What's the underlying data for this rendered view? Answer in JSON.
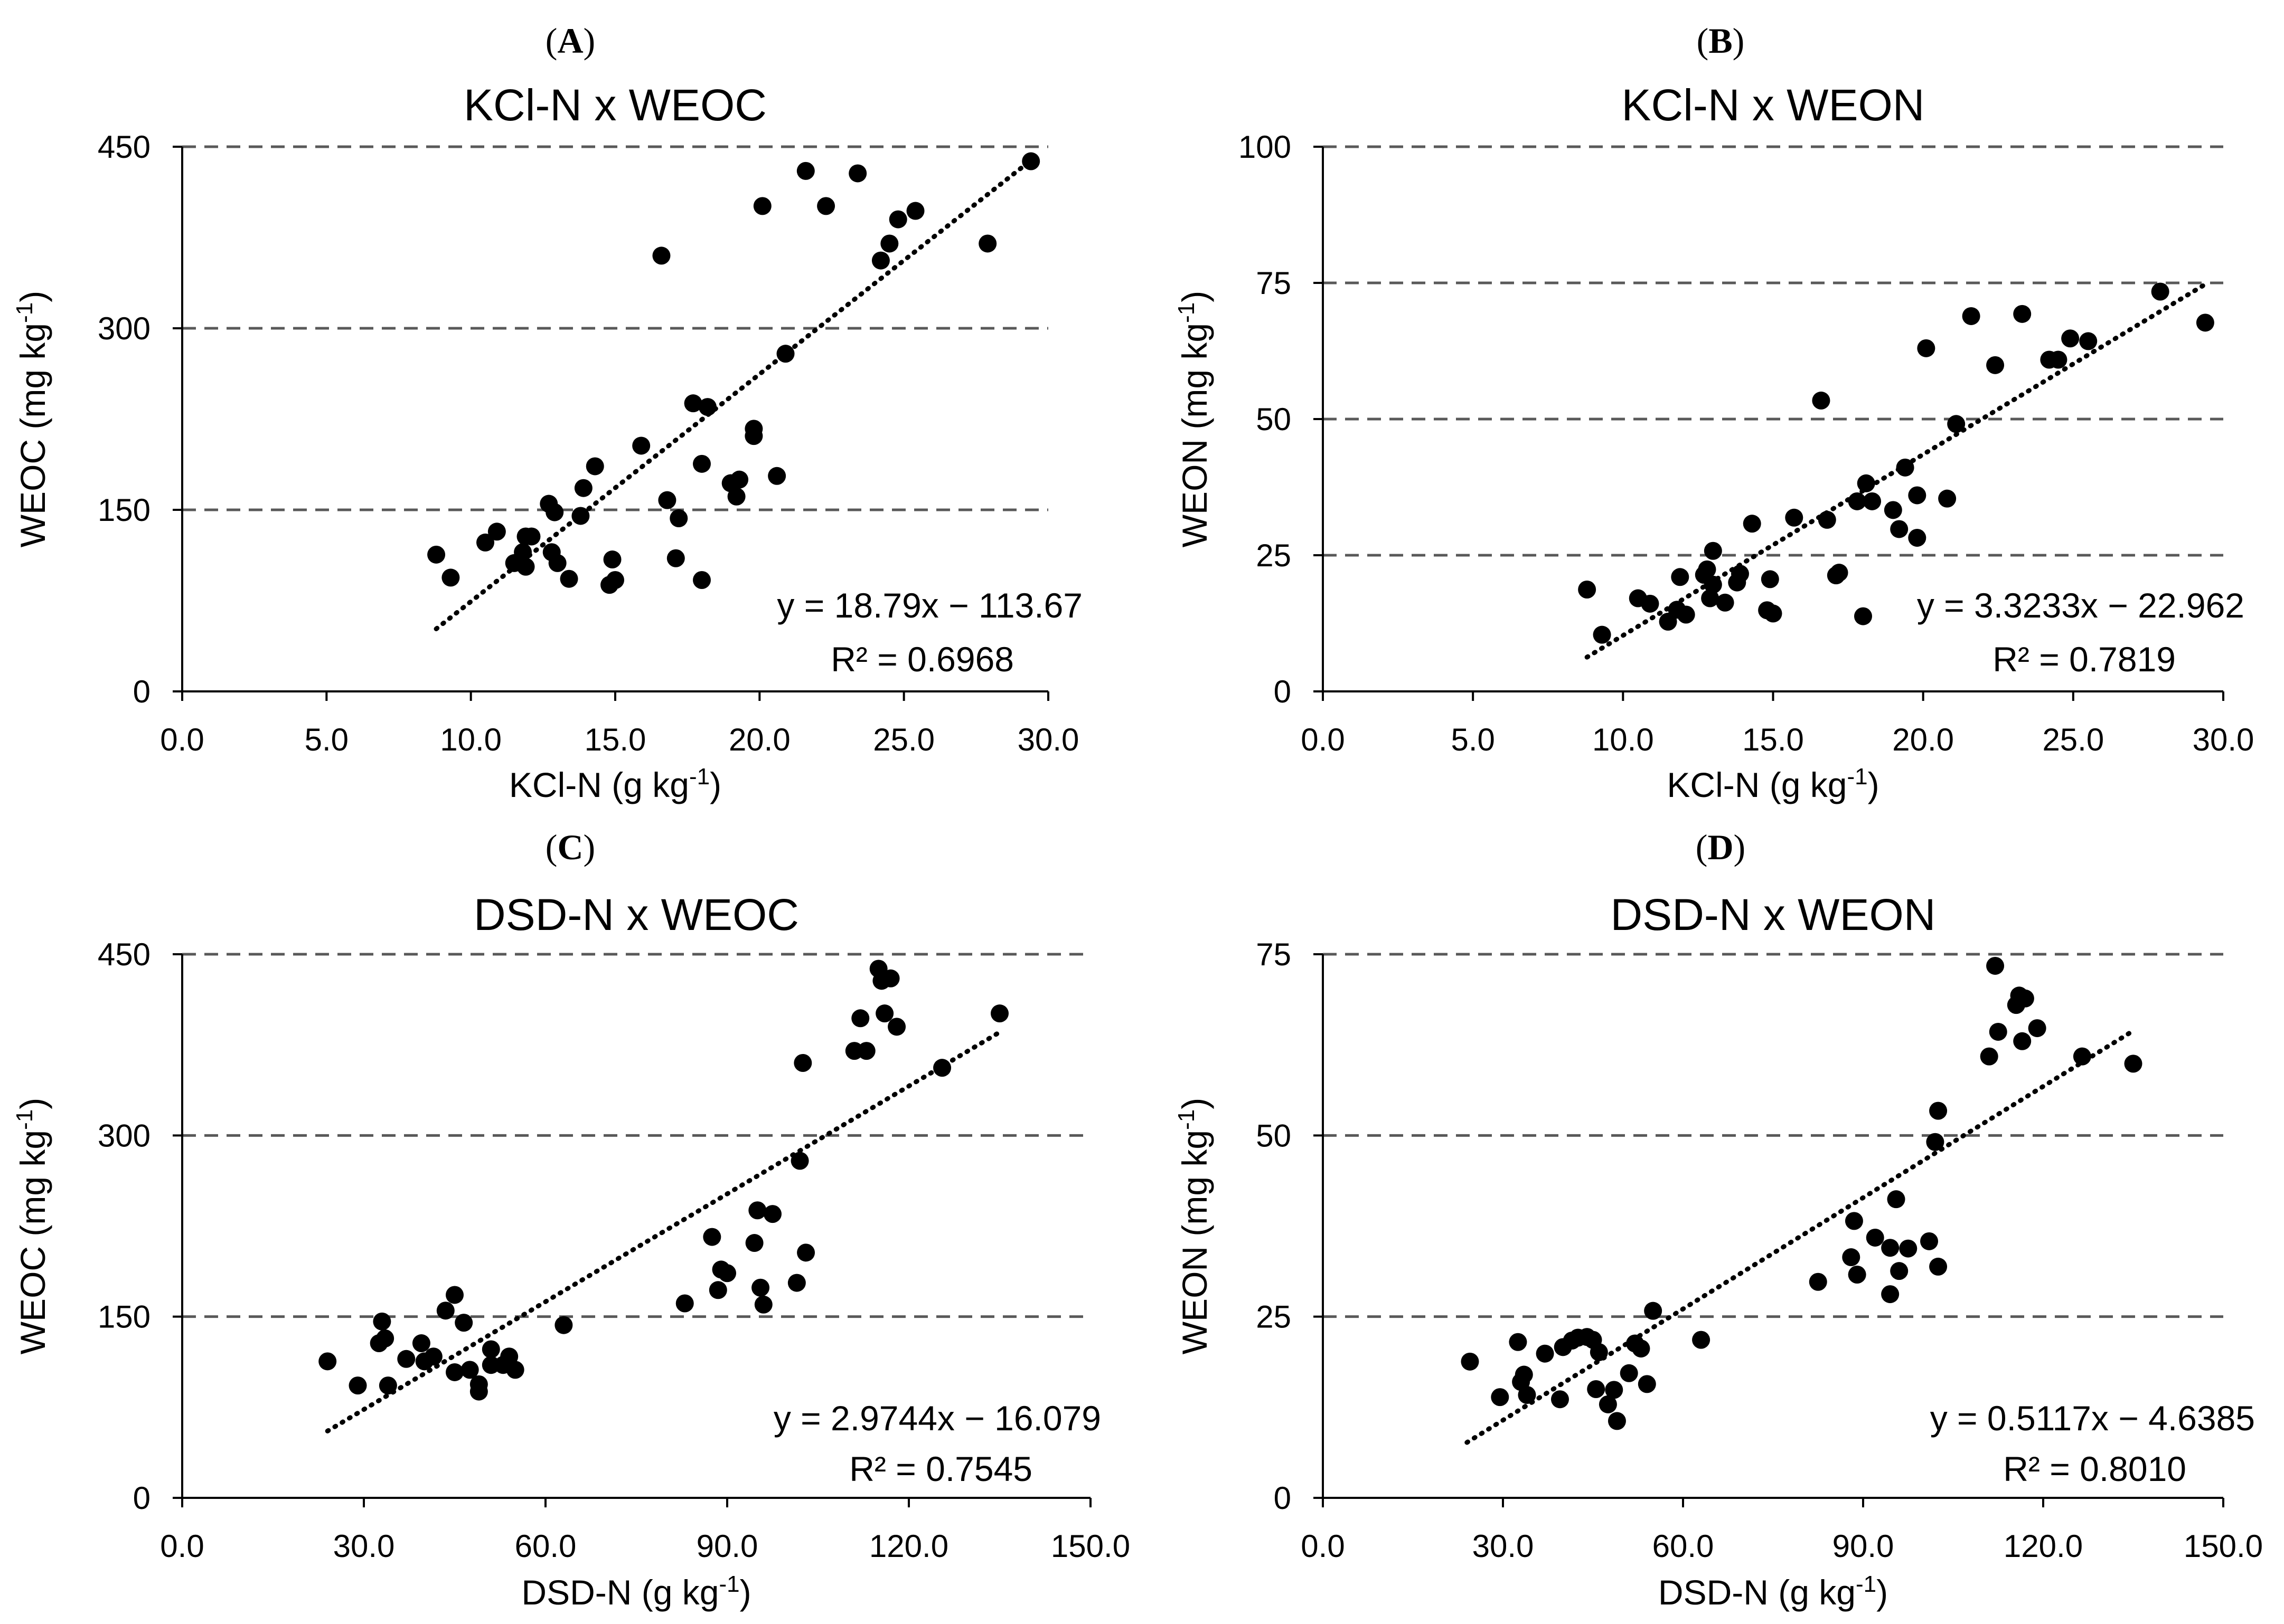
{
  "figure": {
    "panels": [
      {
        "label": "A",
        "open": "(",
        "close": ")"
      },
      {
        "label": "B",
        "open": "(",
        "close": ")"
      },
      {
        "label": "C",
        "open": "(",
        "close": ")"
      },
      {
        "label": "D",
        "open": "(",
        "close": ")"
      }
    ]
  },
  "chart_data": [
    {
      "type": "scatter",
      "panel": "A",
      "title": "KCl-N x WEOC",
      "xlabel": "KCl-N (g kg",
      "xlabel_sup": "-1",
      "xlabel_end": ")",
      "ylabel": "WEOC (mg kg",
      "ylabel_sup": "-1",
      "ylabel_end": ")",
      "xlim": [
        0,
        30
      ],
      "ylim": [
        0,
        450
      ],
      "xticks": [
        "0.0",
        "5.0",
        "10.0",
        "15.0",
        "20.0",
        "25.0",
        "30.0"
      ],
      "xtick_values": [
        0,
        5,
        10,
        15,
        20,
        25,
        30
      ],
      "yticks": [
        "0",
        "150",
        "300",
        "450"
      ],
      "ytick_values": [
        0,
        150,
        300,
        450
      ],
      "grid": "horizontal-dashed",
      "equation": "y = 18.79x − 113.67",
      "r_squared": "R² = 0.6968",
      "trendline": {
        "slope": 18.79,
        "intercept": -113.67,
        "x_range": [
          8.8,
          29.4
        ]
      },
      "points": [
        [
          8.8,
          113
        ],
        [
          9.3,
          94
        ],
        [
          10.5,
          123
        ],
        [
          10.9,
          132
        ],
        [
          11.5,
          106
        ],
        [
          11.8,
          115
        ],
        [
          11.9,
          103
        ],
        [
          11.9,
          128
        ],
        [
          12.1,
          128
        ],
        [
          12.7,
          155
        ],
        [
          12.8,
          115
        ],
        [
          12.9,
          148
        ],
        [
          13.0,
          106
        ],
        [
          13.4,
          93
        ],
        [
          13.8,
          145
        ],
        [
          13.9,
          168
        ],
        [
          14.3,
          186
        ],
        [
          14.8,
          88
        ],
        [
          14.9,
          109
        ],
        [
          15.0,
          92
        ],
        [
          15.9,
          203
        ],
        [
          16.6,
          360
        ],
        [
          16.8,
          158
        ],
        [
          17.1,
          110
        ],
        [
          17.2,
          143
        ],
        [
          17.7,
          238
        ],
        [
          18.0,
          92
        ],
        [
          18.0,
          188
        ],
        [
          18.2,
          235
        ],
        [
          19.0,
          172
        ],
        [
          19.2,
          161
        ],
        [
          19.3,
          175
        ],
        [
          19.8,
          211
        ],
        [
          19.8,
          217
        ],
        [
          20.1,
          401
        ],
        [
          20.6,
          178
        ],
        [
          20.9,
          279
        ],
        [
          21.6,
          430
        ],
        [
          22.3,
          401
        ],
        [
          23.4,
          428
        ],
        [
          24.2,
          356
        ],
        [
          24.5,
          370
        ],
        [
          24.8,
          390
        ],
        [
          25.4,
          397
        ],
        [
          27.9,
          370
        ],
        [
          29.4,
          438
        ]
      ]
    },
    {
      "type": "scatter",
      "panel": "B",
      "title": "KCl-N x WEON",
      "xlabel": "KCl-N (g kg",
      "xlabel_sup": "-1",
      "xlabel_end": ")",
      "ylabel": "WEON (mg kg",
      "ylabel_sup": "-1",
      "ylabel_end": ")",
      "xlim": [
        0,
        30
      ],
      "ylim": [
        0,
        100
      ],
      "xticks": [
        "0.0",
        "5.0",
        "10.0",
        "15.0",
        "20.0",
        "25.0",
        "30.0"
      ],
      "xtick_values": [
        0,
        5,
        10,
        15,
        20,
        25,
        30
      ],
      "yticks": [
        "0",
        "25",
        "50",
        "75",
        "100"
      ],
      "ytick_values": [
        0,
        25,
        50,
        75,
        100
      ],
      "grid": "horizontal-dashed",
      "equation": "y = 3.3233x − 22.962",
      "r_squared": "R² = 0.7819",
      "trendline": {
        "slope": 3.3233,
        "intercept": -22.962,
        "x_range": [
          8.8,
          29.4
        ]
      },
      "points": [
        [
          8.8,
          18.7
        ],
        [
          9.3,
          10.4
        ],
        [
          10.5,
          17.1
        ],
        [
          10.9,
          16.1
        ],
        [
          11.5,
          12.8
        ],
        [
          11.8,
          15.0
        ],
        [
          11.9,
          21.0
        ],
        [
          12.1,
          14.1
        ],
        [
          12.7,
          21.4
        ],
        [
          12.8,
          22.4
        ],
        [
          12.9,
          17.1
        ],
        [
          13.0,
          19.6
        ],
        [
          13.0,
          25.8
        ],
        [
          13.4,
          16.3
        ],
        [
          13.8,
          20.0
        ],
        [
          13.9,
          21.6
        ],
        [
          14.3,
          30.8
        ],
        [
          14.8,
          14.9
        ],
        [
          14.9,
          20.6
        ],
        [
          15.0,
          14.3
        ],
        [
          15.7,
          31.9
        ],
        [
          16.6,
          53.4
        ],
        [
          16.8,
          31.5
        ],
        [
          17.1,
          21.3
        ],
        [
          17.2,
          21.8
        ],
        [
          17.8,
          34.9
        ],
        [
          18.0,
          13.8
        ],
        [
          18.1,
          38.2
        ],
        [
          18.3,
          34.9
        ],
        [
          19.0,
          33.3
        ],
        [
          19.2,
          29.8
        ],
        [
          19.4,
          41.1
        ],
        [
          19.8,
          28.2
        ],
        [
          19.8,
          36.0
        ],
        [
          20.1,
          63.0
        ],
        [
          20.8,
          35.4
        ],
        [
          21.1,
          49.1
        ],
        [
          21.6,
          68.9
        ],
        [
          22.4,
          59.9
        ],
        [
          23.3,
          69.3
        ],
        [
          24.2,
          60.9
        ],
        [
          24.5,
          60.9
        ],
        [
          24.9,
          64.8
        ],
        [
          25.5,
          64.3
        ],
        [
          27.9,
          73.4
        ],
        [
          29.4,
          67.7
        ]
      ]
    },
    {
      "type": "scatter",
      "panel": "C",
      "title": "DSD-N x WEOC",
      "xlabel": "DSD-N (g kg",
      "xlabel_sup": "-1",
      "xlabel_end": ")",
      "ylabel": "WEOC (mg kg",
      "ylabel_sup": "-1",
      "ylabel_end": ")",
      "xlim": [
        0,
        150
      ],
      "ylim": [
        0,
        450
      ],
      "xticks": [
        "0.0",
        "30.0",
        "60.0",
        "90.0",
        "120.0",
        "150.0"
      ],
      "xtick_values": [
        0,
        30,
        60,
        90,
        120,
        150
      ],
      "yticks": [
        "0",
        "150",
        "300",
        "450"
      ],
      "ytick_values": [
        0,
        150,
        300,
        450
      ],
      "grid": "horizontal-dashed",
      "equation": "y = 2.9744x − 16.079",
      "r_squared": "R² = 0.7545",
      "trendline": {
        "slope": 2.9744,
        "intercept": -16.079,
        "x_range": [
          24.0,
          135.0
        ]
      },
      "points": [
        [
          24.0,
          113
        ],
        [
          29.0,
          93
        ],
        [
          32.5,
          128
        ],
        [
          33.0,
          146
        ],
        [
          33.5,
          132
        ],
        [
          34.0,
          93
        ],
        [
          37.0,
          115
        ],
        [
          39.5,
          128
        ],
        [
          40.0,
          113
        ],
        [
          41.5,
          117
        ],
        [
          43.5,
          155
        ],
        [
          45.0,
          168
        ],
        [
          45.0,
          104
        ],
        [
          46.5,
          145
        ],
        [
          47.5,
          106
        ],
        [
          49.0,
          88
        ],
        [
          49.0,
          94
        ],
        [
          51.0,
          110
        ],
        [
          51.0,
          123
        ],
        [
          53.0,
          110
        ],
        [
          54.0,
          117
        ],
        [
          55.0,
          106
        ],
        [
          63.0,
          143
        ],
        [
          83.0,
          161
        ],
        [
          87.5,
          216
        ],
        [
          88.5,
          172
        ],
        [
          89.0,
          189
        ],
        [
          90.0,
          186
        ],
        [
          94.5,
          211
        ],
        [
          95.0,
          238
        ],
        [
          95.5,
          174
        ],
        [
          96.0,
          160
        ],
        [
          97.5,
          235
        ],
        [
          101.5,
          178
        ],
        [
          102.0,
          279
        ],
        [
          102.5,
          360
        ],
        [
          103.0,
          203
        ],
        [
          111.0,
          370
        ],
        [
          112.0,
          397
        ],
        [
          113.0,
          370
        ],
        [
          115.0,
          438
        ],
        [
          115.5,
          428
        ],
        [
          116.0,
          401
        ],
        [
          117.0,
          430
        ],
        [
          118.0,
          390
        ],
        [
          125.5,
          356
        ],
        [
          135.0,
          401
        ]
      ]
    },
    {
      "type": "scatter",
      "panel": "D",
      "title": "DSD-N x WEON",
      "xlabel": "DSD-N (g kg",
      "xlabel_sup": "-1",
      "xlabel_end": ")",
      "ylabel": "WEON (mg kg",
      "ylabel_sup": "-1",
      "ylabel_end": ")",
      "xlim": [
        0,
        150
      ],
      "ylim": [
        0,
        75
      ],
      "xticks": [
        "0.0",
        "30.0",
        "60.0",
        "90.0",
        "120.0",
        "150.0"
      ],
      "xtick_values": [
        0,
        30,
        60,
        90,
        120,
        150
      ],
      "yticks": [
        "0",
        "25",
        "50",
        "75"
      ],
      "ytick_values": [
        0,
        25,
        50,
        75
      ],
      "grid": "horizontal-dashed",
      "equation": "y = 0.5117x − 4.6385",
      "r_squared": "R² = 0.8010",
      "trendline": {
        "slope": 0.5117,
        "intercept": -4.6385,
        "x_range": [
          24.0,
          135.0
        ]
      },
      "points": [
        [
          24.5,
          18.8
        ],
        [
          29.5,
          13.9
        ],
        [
          32.5,
          21.5
        ],
        [
          33.0,
          16.0
        ],
        [
          33.5,
          17.0
        ],
        [
          34.0,
          14.2
        ],
        [
          37.0,
          19.9
        ],
        [
          39.5,
          13.6
        ],
        [
          40.0,
          20.8
        ],
        [
          41.5,
          21.7
        ],
        [
          42.5,
          22.1
        ],
        [
          44.0,
          22.2
        ],
        [
          45.0,
          21.8
        ],
        [
          45.5,
          15.0
        ],
        [
          46.0,
          20.1
        ],
        [
          47.5,
          12.9
        ],
        [
          48.5,
          14.9
        ],
        [
          49.0,
          10.6
        ],
        [
          51.0,
          17.2
        ],
        [
          52.0,
          21.3
        ],
        [
          53.0,
          20.6
        ],
        [
          54.0,
          15.7
        ],
        [
          55.0,
          25.8
        ],
        [
          63.0,
          21.8
        ],
        [
          82.5,
          29.8
        ],
        [
          88.0,
          33.2
        ],
        [
          88.5,
          38.2
        ],
        [
          89.0,
          30.8
        ],
        [
          92.0,
          35.9
        ],
        [
          94.5,
          34.5
        ],
        [
          94.5,
          28.1
        ],
        [
          95.5,
          41.2
        ],
        [
          96.0,
          31.3
        ],
        [
          97.5,
          34.4
        ],
        [
          101.0,
          35.4
        ],
        [
          102.0,
          49.1
        ],
        [
          102.5,
          53.4
        ],
        [
          102.5,
          31.9
        ],
        [
          111.0,
          60.9
        ],
        [
          112.0,
          73.4
        ],
        [
          112.5,
          64.3
        ],
        [
          115.5,
          68.0
        ],
        [
          116.0,
          69.3
        ],
        [
          116.5,
          63.0
        ],
        [
          117.0,
          68.9
        ],
        [
          119.0,
          64.8
        ],
        [
          126.5,
          60.9
        ],
        [
          135.0,
          59.9
        ]
      ]
    }
  ]
}
